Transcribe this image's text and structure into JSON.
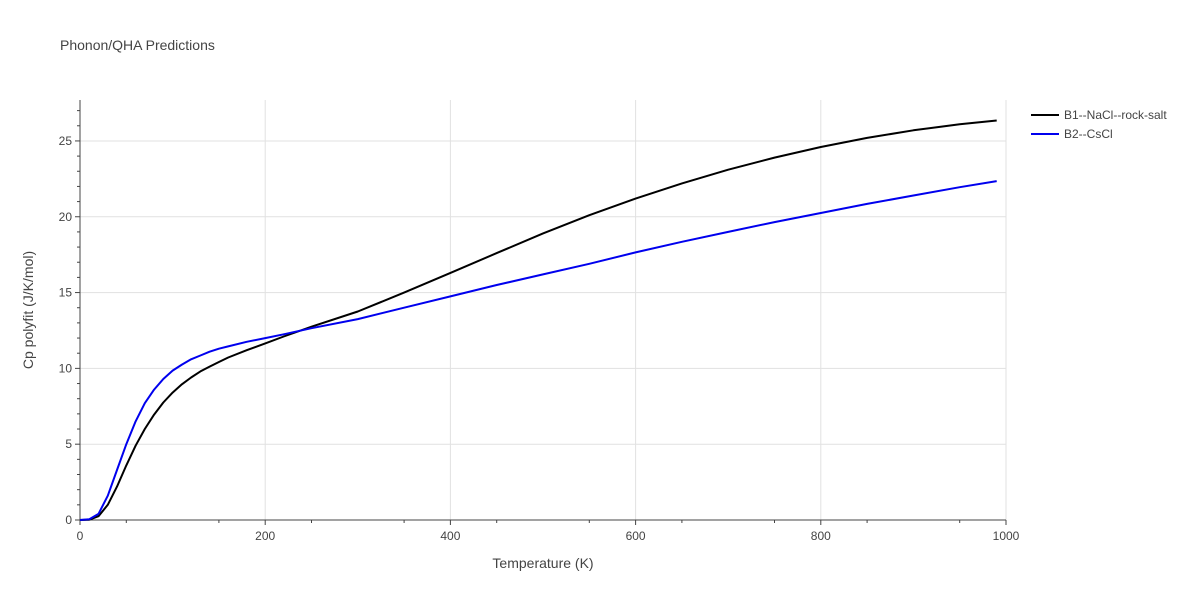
{
  "chart_data": {
    "type": "line",
    "title": "Phonon/QHA Predictions",
    "xlabel": "Temperature (K)",
    "ylabel": "Cp polyfit (J/K/mol)",
    "xlim": [
      0,
      1000
    ],
    "ylim": [
      0,
      27.7
    ],
    "xticks": [
      0,
      200,
      400,
      600,
      800,
      1000
    ],
    "xtick_labels": [
      "0",
      "200",
      "400",
      "600",
      "800",
      "1000"
    ],
    "yticks": [
      0,
      5,
      10,
      15,
      20,
      25
    ],
    "ytick_labels": [
      "0",
      "5",
      "10",
      "15",
      "20",
      "25"
    ],
    "grid": true,
    "legend_position": "top-right",
    "series": [
      {
        "name": "B1--NaCl--rock-salt",
        "color": "#000000",
        "x": [
          0,
          10,
          20,
          30,
          40,
          50,
          60,
          70,
          80,
          90,
          100,
          110,
          120,
          130,
          140,
          150,
          160,
          180,
          200,
          220,
          250,
          300,
          350,
          400,
          450,
          500,
          550,
          600,
          650,
          700,
          750,
          800,
          850,
          900,
          950,
          990
        ],
        "y": [
          0,
          0.02,
          0.25,
          1.0,
          2.2,
          3.6,
          4.9,
          6.0,
          6.95,
          7.75,
          8.4,
          8.95,
          9.4,
          9.8,
          10.12,
          10.42,
          10.72,
          11.2,
          11.65,
          12.1,
          12.75,
          13.75,
          15.0,
          16.3,
          17.6,
          18.9,
          20.1,
          21.2,
          22.2,
          23.1,
          23.9,
          24.6,
          25.2,
          25.7,
          26.1,
          26.35
        ]
      },
      {
        "name": "B2--CsCl",
        "color": "#0000ee",
        "x": [
          0,
          10,
          20,
          30,
          40,
          50,
          60,
          70,
          80,
          90,
          100,
          110,
          120,
          130,
          140,
          150,
          160,
          180,
          200,
          220,
          250,
          300,
          350,
          400,
          450,
          500,
          550,
          600,
          650,
          700,
          750,
          800,
          850,
          900,
          950,
          990
        ],
        "y": [
          0,
          0.05,
          0.4,
          1.6,
          3.3,
          5.0,
          6.5,
          7.7,
          8.6,
          9.3,
          9.85,
          10.25,
          10.6,
          10.85,
          11.1,
          11.3,
          11.45,
          11.75,
          12.0,
          12.25,
          12.65,
          13.25,
          14.0,
          14.75,
          15.5,
          16.2,
          16.9,
          17.65,
          18.35,
          19.0,
          19.65,
          20.25,
          20.85,
          21.4,
          21.95,
          22.35
        ]
      }
    ]
  }
}
